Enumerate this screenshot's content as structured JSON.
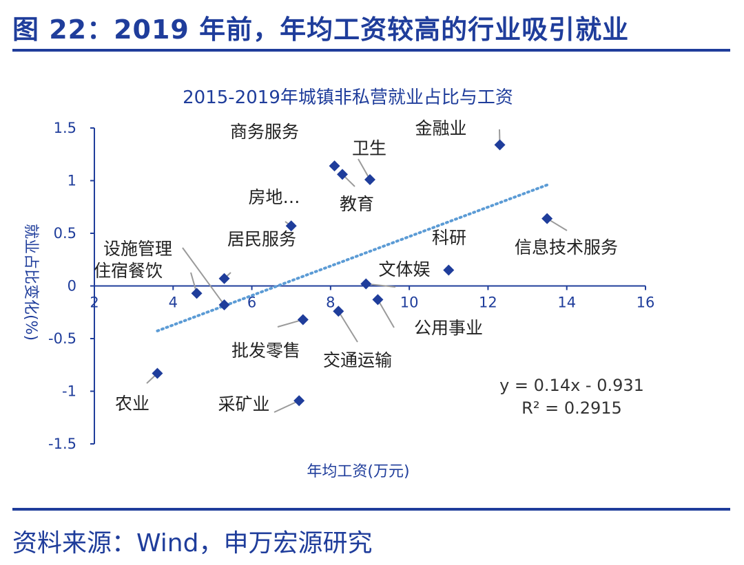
{
  "header": {
    "title": "图 22：2019 年前，年均工资较高的行业吸引就业"
  },
  "footer": {
    "source": "资料来源：Wind，申万宏源研究"
  },
  "colors": {
    "brand": "#1f3d9b",
    "marker": "#1f3d9b",
    "trendline": "#5b9bd5"
  },
  "chart_data": {
    "type": "scatter",
    "title": "2015-2019年城镇非私营就业占比与工资",
    "xlabel": "年均工资(万元)",
    "ylabel": "就业占比变化(%)",
    "xlim": [
      2,
      16
    ],
    "ylim": [
      -1.5,
      1.5
    ],
    "xticks": [
      "2",
      "4",
      "6",
      "8",
      "10",
      "12",
      "14",
      "16"
    ],
    "yticks": [
      "1.5",
      "1",
      "0.5",
      "0",
      "-0.5",
      "-1",
      "-1.5"
    ],
    "grid": false,
    "points": [
      {
        "label": "金融业",
        "x": 12.3,
        "y": 1.34
      },
      {
        "label": "商务服务",
        "x": 8.1,
        "y": 1.14
      },
      {
        "label": "教育",
        "x": 8.3,
        "y": 1.06
      },
      {
        "label": "卫生",
        "x": 9.0,
        "y": 1.01
      },
      {
        "label": "房地…",
        "x": 7.0,
        "y": 0.57
      },
      {
        "label": "信息技术服务",
        "x": 13.5,
        "y": 0.64
      },
      {
        "label": "居民服务",
        "x": 5.3,
        "y": 0.07
      },
      {
        "label": "科研",
        "x": 11.0,
        "y": 0.15
      },
      {
        "label": "文体娱",
        "x": 8.9,
        "y": 0.02
      },
      {
        "label": "住宿餐饮",
        "x": 4.6,
        "y": -0.07
      },
      {
        "label": "设施管理",
        "x": 5.3,
        "y": -0.18
      },
      {
        "label": "公用事业",
        "x": 9.2,
        "y": -0.13
      },
      {
        "label": "交通运输",
        "x": 8.2,
        "y": -0.24
      },
      {
        "label": "批发零售",
        "x": 7.3,
        "y": -0.32
      },
      {
        "label": "农业",
        "x": 3.6,
        "y": -0.83
      },
      {
        "label": "采矿业",
        "x": 7.2,
        "y": -1.09
      }
    ],
    "trendline": {
      "slope": 0.14,
      "intercept": -0.931,
      "x_range": [
        3.6,
        13.5
      ],
      "style": "dotted"
    },
    "annotations": [
      "y = 0.14x - 0.931",
      "R² = 0.2915"
    ]
  }
}
